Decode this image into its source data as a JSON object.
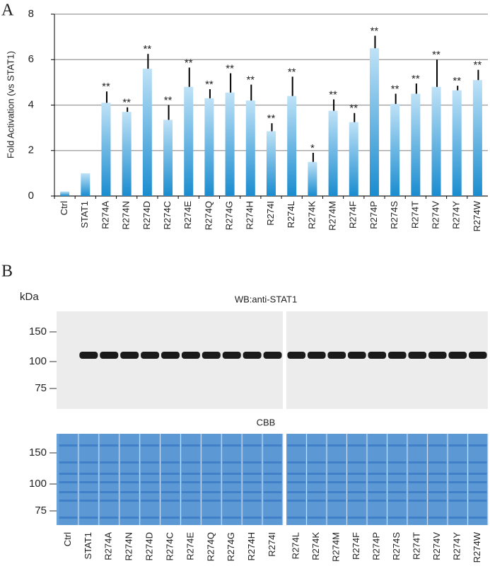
{
  "panel_a": "A",
  "chart_data": {
    "type": "bar",
    "ylabel": "Fold Activation (vs STAT1)",
    "categories": [
      "Ctrl",
      "STAT1",
      "R274A",
      "R274N",
      "R274D",
      "R274C",
      "R274E",
      "R274Q",
      "R274G",
      "R274H",
      "R274I",
      "R274L",
      "R274K",
      "R274M",
      "R274F",
      "R274P",
      "R274S",
      "R274T",
      "R274V",
      "R274Y",
      "R274W"
    ],
    "values": [
      0.2,
      1.0,
      4.1,
      3.7,
      5.6,
      3.35,
      4.8,
      4.3,
      4.55,
      4.2,
      2.85,
      4.4,
      1.5,
      3.75,
      3.25,
      6.5,
      4.05,
      4.5,
      4.8,
      4.65,
      5.1
    ],
    "errors": [
      null,
      null,
      0.5,
      0.2,
      0.65,
      0.65,
      0.85,
      0.4,
      0.85,
      0.7,
      0.35,
      0.85,
      0.4,
      0.5,
      0.4,
      0.55,
      0.45,
      0.45,
      1.2,
      0.2,
      0.45
    ],
    "annotations": [
      null,
      null,
      "**",
      "**",
      "**",
      "**",
      "**",
      "**",
      "**",
      "**",
      "**",
      "**",
      "*",
      "**",
      "**",
      "**",
      "**",
      "**",
      "**",
      "**",
      "**"
    ],
    "gradient": [
      "#bfe2f7",
      "#1a8ccf"
    ],
    "ylim": [
      0,
      8
    ],
    "yticks": [
      0,
      2,
      4,
      6,
      8
    ],
    "grid": true
  },
  "panel_b": {
    "label": "B",
    "unit": "kDa",
    "wb_title": "WB:anti-STAT1",
    "cbb_title": "CBB",
    "markers": [
      150,
      100,
      75
    ],
    "lanes_left": [
      "Ctrl",
      "STAT1",
      "R274A",
      "R274N",
      "R274D",
      "R274C",
      "R274E",
      "R274Q",
      "R274G",
      "R274H",
      "R274I"
    ],
    "lanes_right": [
      "R274L",
      "R274K",
      "R274M",
      "R274F",
      "R274P",
      "R274S",
      "R274T",
      "R274V",
      "R274Y",
      "R274W"
    ]
  }
}
